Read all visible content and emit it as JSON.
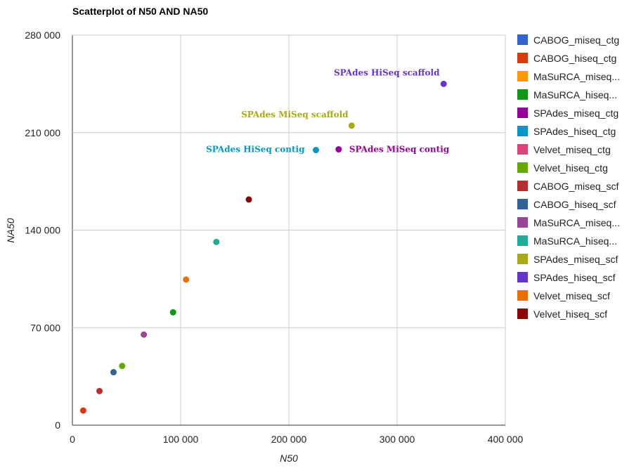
{
  "chart_data": {
    "type": "scatter",
    "title": "Scatterplot of N50 AND NA50",
    "xlabel": "N50",
    "ylabel": "NA50",
    "xlim": [
      0,
      400000
    ],
    "ylim": [
      0,
      280000
    ],
    "x_ticks": [
      0,
      100000,
      200000,
      300000,
      400000
    ],
    "x_tick_labels": [
      "0",
      "100 000",
      "200 000",
      "300 000",
      "400 000"
    ],
    "y_ticks": [
      0,
      70000,
      140000,
      210000,
      280000
    ],
    "y_tick_labels": [
      "0",
      "70 000",
      "140 000",
      "210 000",
      "280 000"
    ],
    "grid": true,
    "legend_position": "right",
    "series": [
      {
        "name": "CABOG_miseq_ctg",
        "color": "#3366cc",
        "points": []
      },
      {
        "name": "CABOG_hiseq_ctg",
        "color": "#dc3912",
        "points": [
          [
            10000,
            10500
          ]
        ]
      },
      {
        "name": "MaSuRCA_miseq...",
        "color": "#ff9900",
        "points": []
      },
      {
        "name": "MaSuRCA_hiseq...",
        "color": "#109618",
        "points": [
          [
            93000,
            81000
          ]
        ]
      },
      {
        "name": "SPAdes_miseq_ctg",
        "color": "#990099",
        "points": [
          [
            246000,
            198000
          ]
        ]
      },
      {
        "name": "SPAdes_hiseq_ctg",
        "color": "#0099c6",
        "points": [
          [
            225000,
            197500
          ]
        ]
      },
      {
        "name": "Velvet_miseq_ctg",
        "color": "#dd4477",
        "points": []
      },
      {
        "name": "Velvet_hiseq_ctg",
        "color": "#66aa00",
        "points": [
          [
            46000,
            42500
          ]
        ]
      },
      {
        "name": "CABOG_miseq_scf",
        "color": "#b82e2e",
        "points": [
          [
            25000,
            24500
          ]
        ]
      },
      {
        "name": "CABOG_hiseq_scf",
        "color": "#316395",
        "points": [
          [
            38000,
            38000
          ]
        ]
      },
      {
        "name": "MaSuRCA_miseq...",
        "color": "#994499",
        "points": [
          [
            66000,
            65000
          ]
        ]
      },
      {
        "name": "MaSuRCA_hiseq...",
        "color": "#22aa99",
        "points": [
          [
            133000,
            131500
          ]
        ]
      },
      {
        "name": "SPAdes_miseq_scf",
        "color": "#aaaa11",
        "points": [
          [
            258000,
            215000
          ]
        ]
      },
      {
        "name": "SPAdes_hiseq_scf",
        "color": "#6633cc",
        "points": [
          [
            343000,
            245000
          ]
        ]
      },
      {
        "name": "Velvet_miseq_scf",
        "color": "#e67300",
        "points": [
          [
            105000,
            104500
          ]
        ]
      },
      {
        "name": "Velvet_hiseq_scf",
        "color": "#8b0707",
        "points": [
          [
            163000,
            162000
          ]
        ]
      }
    ],
    "annotations": [
      {
        "text": "SPAdes HiSeq scaffold",
        "x": 343000,
        "y": 245000,
        "color": "#6633cc",
        "align": "above"
      },
      {
        "text": "SPAdes MiSeq scaffold",
        "x": 258000,
        "y": 215000,
        "color": "#aaaa11",
        "align": "above"
      },
      {
        "text": "SPAdes HiSeq contig",
        "x": 225000,
        "y": 197500,
        "color": "#0099c6",
        "align": "left"
      },
      {
        "text": "SPAdes MiSeq contig",
        "x": 246000,
        "y": 198000,
        "color": "#990099",
        "align": "right"
      }
    ]
  }
}
